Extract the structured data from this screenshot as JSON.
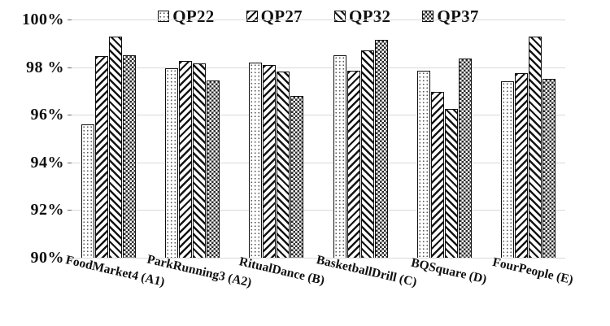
{
  "chart_data": {
    "type": "bar",
    "title": "",
    "xlabel": "",
    "ylabel": "",
    "ylim": [
      90,
      100
    ],
    "ytick_step": 2,
    "ytick_labels_top_to_bottom": [
      "100%",
      "98 %",
      "96%",
      "94%",
      "92%",
      "90%"
    ],
    "grid": true,
    "legend_position": "top-center",
    "categories": [
      "FoodMarket4 (A1)",
      "ParkRunning3 (A2)",
      "RitualDance (B)",
      "BasketballDrill (C)",
      "BQSquare (D)",
      "FourPeople (E)"
    ],
    "series": [
      {
        "name": "QP22",
        "pattern": "dots-icon",
        "values": [
          95.6,
          97.95,
          98.2,
          98.5,
          97.85,
          97.4
        ]
      },
      {
        "name": "QP27",
        "pattern": "diagonal-forward-icon",
        "values": [
          98.45,
          98.25,
          98.1,
          97.85,
          96.95,
          97.75
        ]
      },
      {
        "name": "QP32",
        "pattern": "diagonal-backward-icon",
        "values": [
          99.3,
          98.15,
          97.8,
          98.7,
          96.25,
          99.3
        ]
      },
      {
        "name": "QP37",
        "pattern": "checkerboard-icon",
        "values": [
          98.5,
          97.45,
          96.8,
          99.15,
          98.35,
          97.5
        ]
      }
    ],
    "colors": {
      "background": "#ffffff",
      "bar_outline": "#101010",
      "pattern_ink": "#141414",
      "gridline": "#d9d9d9",
      "text": "#111111"
    }
  }
}
